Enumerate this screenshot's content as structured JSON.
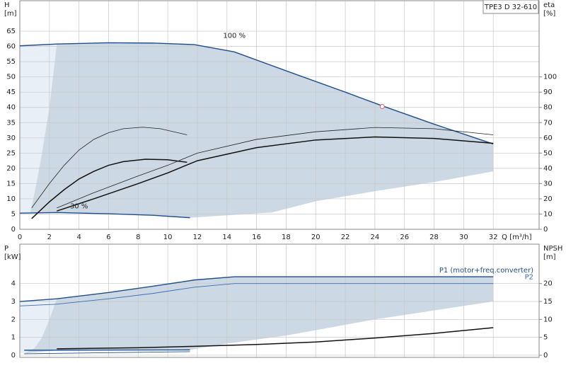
{
  "chart_data": [
    {
      "type": "line",
      "title": "TPE3 D 32-610",
      "xlabel": "Q [m³/h]",
      "ylabel": [
        "H",
        "[m]"
      ],
      "y2label": [
        "eta",
        "[%]"
      ],
      "xlim": [
        0,
        35.1
      ],
      "ylim": [
        0,
        75
      ],
      "y2lim": [
        0,
        150
      ],
      "xticks": [
        0,
        2,
        4,
        6,
        8,
        10,
        12,
        14,
        16,
        18,
        20,
        22,
        24,
        26,
        28,
        30,
        32
      ],
      "yticks": [
        0,
        5,
        10,
        15,
        20,
        25,
        30,
        35,
        40,
        45,
        50,
        55,
        60,
        65
      ],
      "y2ticks": [
        0,
        10,
        20,
        30,
        40,
        50,
        60,
        70,
        80,
        90,
        100
      ],
      "grid": true,
      "regions": [
        {
          "color": "#e8eff7",
          "x": [
            0,
            2.5,
            2,
            1.5,
            1,
            0.7,
            0
          ],
          "y": [
            60.2,
            60.8,
            40,
            25,
            12,
            5.3,
            5.3
          ]
        },
        {
          "color": "#ccd8e3",
          "x": [
            2.5,
            6,
            9,
            11.8,
            14.5,
            18,
            22,
            24.5,
            28,
            32,
            32,
            28,
            24,
            20,
            17,
            14,
            11.5,
            9,
            6,
            2.5,
            0.7,
            1,
            1.5,
            2
          ],
          "y": [
            60.8,
            61.2,
            61.1,
            60.6,
            58.2,
            52,
            45,
            40.5,
            34.5,
            28,
            19,
            15.5,
            12.5,
            9.2,
            5.5,
            4.6,
            3.8,
            4.6,
            5.1,
            5.5,
            5.3,
            12,
            25,
            40
          ]
        }
      ],
      "series": [
        {
          "color": "#1f4e8c",
          "width": 1.4,
          "x": [
            0,
            2.5,
            6,
            9,
            11.8,
            14.5,
            18,
            22,
            24.5,
            28,
            32
          ],
          "values": [
            60.2,
            60.8,
            61.2,
            61.1,
            60.6,
            58.2,
            52,
            45,
            40.5,
            34.5,
            28
          ]
        },
        {
          "color": "#1f4e8c",
          "width": 1.4,
          "x": [
            0,
            2.5,
            6,
            9,
            11.5
          ],
          "values": [
            5.3,
            5.5,
            5.1,
            4.6,
            3.8
          ]
        },
        {
          "color": "#222222",
          "width": 0.8,
          "axis": "y2",
          "x": [
            0.8,
            2,
            3,
            4,
            5,
            6,
            7,
            8.3,
            9.5,
            11.3
          ],
          "values": [
            14,
            30,
            42,
            52,
            59,
            63.4,
            66,
            67,
            66,
            62
          ]
        },
        {
          "color": "#111111",
          "width": 1.5,
          "axis": "y2",
          "x": [
            0.8,
            2,
            3,
            4,
            5,
            6,
            7,
            8.5,
            10,
            11.3
          ],
          "values": [
            7,
            18,
            26,
            33,
            38,
            42,
            44.4,
            46,
            45.6,
            44
          ]
        },
        {
          "color": "#222222",
          "width": 0.8,
          "axis": "y2",
          "x": [
            2.5,
            5,
            8,
            10,
            12,
            16,
            20,
            24,
            28,
            32
          ],
          "values": [
            14,
            24,
            35,
            42,
            50,
            59,
            64,
            66.8,
            66,
            62
          ]
        },
        {
          "color": "#111111",
          "width": 1.5,
          "axis": "y2",
          "x": [
            2.5,
            5,
            8,
            10,
            12,
            16,
            20,
            24,
            28,
            32
          ],
          "values": [
            12,
            20,
            30,
            37,
            45,
            53.6,
            58.6,
            60.6,
            59.6,
            56.4
          ]
        }
      ],
      "point": {
        "x": 24.5,
        "y": 40.3,
        "color": "#e05a6a"
      },
      "annotations": [
        "100 %",
        "30 %"
      ]
    },
    {
      "type": "line",
      "ylabel": [
        "P",
        "[kW]"
      ],
      "y2label": [
        "NPSH",
        "[m]"
      ],
      "xlim": [
        0,
        35.1
      ],
      "ylim": [
        -0.12,
        6.2
      ],
      "y2lim": [
        -0.6,
        31
      ],
      "yticks": [
        0,
        1,
        2,
        3,
        4
      ],
      "y2ticks": [
        0,
        5,
        10,
        15,
        20
      ],
      "grid": true,
      "regions": [
        {
          "color": "#e8eff7",
          "x": [
            0,
            2.5,
            2,
            1.5,
            1,
            0.3,
            0
          ],
          "y": [
            3.0,
            3.15,
            2.0,
            1.0,
            0.4,
            0.1,
            0.1
          ]
        },
        {
          "color": "#ccd8e3",
          "x": [
            2.5,
            6,
            9,
            11.8,
            14.5,
            20,
            32,
            32,
            24,
            18,
            14,
            11.5,
            6,
            2.5,
            0.3,
            1,
            1.5,
            2
          ],
          "y": [
            3.15,
            3.5,
            3.85,
            4.2,
            4.38,
            4.38,
            4.38,
            3.0,
            2.0,
            1.1,
            0.65,
            0.3,
            0.28,
            0.27,
            0.1,
            0.4,
            1.0,
            2.0
          ]
        }
      ],
      "series": [
        {
          "name": "P1 (motor+freq.converter)",
          "color": "#1f4e8c",
          "width": 1.4,
          "x": [
            0,
            2.5,
            6,
            9,
            11.8,
            14.5,
            20,
            32
          ],
          "values": [
            3.0,
            3.15,
            3.5,
            3.85,
            4.2,
            4.38,
            4.38,
            4.38
          ]
        },
        {
          "name": "P2",
          "color": "#3a6db0",
          "width": 0.9,
          "x": [
            0,
            2.5,
            6,
            9,
            11.8,
            14.5,
            32
          ],
          "values": [
            2.75,
            2.85,
            3.15,
            3.45,
            3.8,
            4.0,
            4.0
          ]
        },
        {
          "color": "#1f4e8c",
          "width": 1.4,
          "x": [
            0.3,
            11.5
          ],
          "values": [
            0.28,
            0.3
          ]
        },
        {
          "color": "#1f4e8c",
          "width": 0.9,
          "x": [
            0.3,
            11.5
          ],
          "values": [
            0.08,
            0.2
          ]
        },
        {
          "color": "#111111",
          "width": 1.5,
          "axis": "y2",
          "x": [
            2.5,
            8,
            12,
            16,
            20,
            24,
            28,
            32
          ],
          "values": [
            1.8,
            2.1,
            2.5,
            3,
            3.7,
            4.8,
            6.1,
            7.7
          ]
        }
      ]
    }
  ]
}
